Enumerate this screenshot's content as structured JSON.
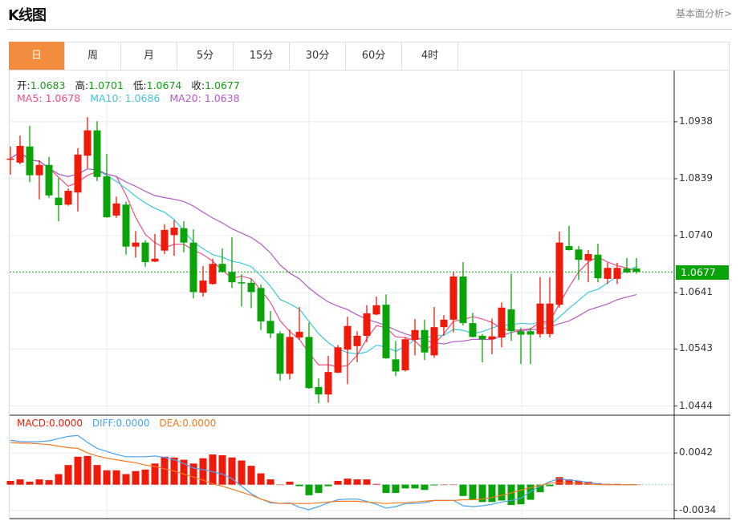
{
  "header": {
    "title": "K线图",
    "link": "基本面分析>"
  },
  "tabs": [
    {
      "label": "日",
      "active": true
    },
    {
      "label": "周"
    },
    {
      "label": "月"
    },
    {
      "label": "5分"
    },
    {
      "label": "15分"
    },
    {
      "label": "30分"
    },
    {
      "label": "60分"
    },
    {
      "label": "4时"
    }
  ],
  "ohlc_legend": {
    "open_label": "开:",
    "open": "1.0683",
    "high_label": "高:",
    "high": "1.0701",
    "low_label": "低:",
    "low": "1.0674",
    "close_label": "收:",
    "close": "1.0677"
  },
  "ma_legend": {
    "ma5": "MA5: 1.0678",
    "ma10": "MA10: 1.0686",
    "ma20": "MA20: 1.0638"
  },
  "macd_legend": {
    "macd": "MACD:0.0000",
    "diff": "DIFF:0.0000",
    "dea": "DEA:0.0000"
  },
  "current_price": "1.0677",
  "colors": {
    "up": "#f01a0a",
    "down": "#0aa40a",
    "ma5": "#f0507f",
    "ma10": "#3cc8e0",
    "ma20": "#b35cc8",
    "diff": "#4aa3f0",
    "dea": "#f57a1e",
    "accent": "#f28c3e"
  },
  "chart_data": [
    {
      "type": "candlestick",
      "ylim": [
        1.0428,
        1.1027
      ],
      "yticks": [
        "1.0938",
        "1.0839",
        "1.0740",
        "1.0641",
        "1.0543",
        "1.0444"
      ],
      "ohlc": [
        [
          1.0872,
          1.0895,
          1.0846,
          1.0874
        ],
        [
          1.0867,
          1.0914,
          1.0864,
          1.0896
        ],
        [
          1.0895,
          1.0931,
          1.0833,
          1.0845
        ],
        [
          1.0845,
          1.0871,
          1.0803,
          1.0863
        ],
        [
          1.0863,
          1.0877,
          1.0806,
          1.081
        ],
        [
          1.0806,
          1.084,
          1.0765,
          1.0793
        ],
        [
          1.0794,
          1.0822,
          1.0792,
          1.0818
        ],
        [
          1.0815,
          1.0892,
          1.0782,
          1.0881
        ],
        [
          1.0879,
          1.0946,
          1.0857,
          1.0923
        ],
        [
          1.0923,
          1.0939,
          1.0835,
          1.0842
        ],
        [
          1.0843,
          1.0882,
          1.0771,
          1.0772
        ],
        [
          1.0775,
          1.0808,
          1.0771,
          1.0796
        ],
        [
          1.0794,
          1.0799,
          1.0707,
          1.0721
        ],
        [
          1.0721,
          1.0748,
          1.0702,
          1.0728
        ],
        [
          1.0728,
          1.0732,
          1.0686,
          1.0694
        ],
        [
          1.0695,
          1.0743,
          1.0694,
          1.07
        ],
        [
          1.0714,
          1.076,
          1.0708,
          1.075
        ],
        [
          1.0741,
          1.0767,
          1.0705,
          1.0754
        ],
        [
          1.0753,
          1.0765,
          1.0711,
          1.0728
        ],
        [
          1.0728,
          1.0751,
          1.0631,
          1.0642
        ],
        [
          1.0641,
          1.0687,
          1.0634,
          1.0662
        ],
        [
          1.0656,
          1.07,
          1.0655,
          1.0691
        ],
        [
          1.0691,
          1.0718,
          1.0676,
          1.0677
        ],
        [
          1.0677,
          1.0737,
          1.0649,
          1.0659
        ],
        [
          1.0659,
          1.0673,
          1.0617,
          1.0658
        ],
        [
          1.0658,
          1.0665,
          1.0614,
          1.0642
        ],
        [
          1.0649,
          1.0655,
          1.0576,
          1.0591
        ],
        [
          1.0592,
          1.0609,
          1.0562,
          1.057
        ],
        [
          1.057,
          1.0574,
          1.0488,
          1.05
        ],
        [
          1.05,
          1.0577,
          1.049,
          1.0564
        ],
        [
          1.0563,
          1.0616,
          1.0559,
          1.0573
        ],
        [
          1.0564,
          1.0589,
          1.0474,
          1.0475
        ],
        [
          1.0477,
          1.0492,
          1.0449,
          1.0464
        ],
        [
          1.0464,
          1.0531,
          1.045,
          1.0503
        ],
        [
          1.0502,
          1.055,
          1.0501,
          1.0546
        ],
        [
          1.0542,
          1.0599,
          1.0482,
          1.0583
        ],
        [
          1.0548,
          1.0574,
          1.052,
          1.0566
        ],
        [
          1.0566,
          1.0619,
          1.0555,
          1.0605
        ],
        [
          1.0603,
          1.0634,
          1.0602,
          1.0619
        ],
        [
          1.062,
          1.0638,
          1.0526,
          1.0527
        ],
        [
          1.0525,
          1.0557,
          1.0496,
          1.0504
        ],
        [
          1.0506,
          1.0564,
          1.0504,
          1.056
        ],
        [
          1.0559,
          1.0595,
          1.0532,
          1.0576
        ],
        [
          1.0576,
          1.0594,
          1.0524,
          1.0537
        ],
        [
          1.0532,
          1.0616,
          1.0528,
          1.0581
        ],
        [
          1.0581,
          1.0602,
          1.0566,
          1.0594
        ],
        [
          1.0594,
          1.0677,
          1.0572,
          1.0669
        ],
        [
          1.0669,
          1.0694,
          1.0584,
          1.0588
        ],
        [
          1.0588,
          1.0606,
          1.0563,
          1.0564
        ],
        [
          1.0566,
          1.0569,
          1.052,
          1.056
        ],
        [
          1.056,
          1.0596,
          1.0534,
          1.0565
        ],
        [
          1.0563,
          1.0624,
          1.0546,
          1.0615
        ],
        [
          1.0612,
          1.0674,
          1.0557,
          1.0574
        ],
        [
          1.0574,
          1.058,
          1.0517,
          1.0568
        ],
        [
          1.0574,
          1.058,
          1.0517,
          1.0568
        ],
        [
          1.0569,
          1.0668,
          1.0563,
          1.0622
        ],
        [
          1.0569,
          1.0668,
          1.0563,
          1.0622
        ],
        [
          1.062,
          1.0747,
          1.0615,
          1.0728
        ],
        [
          1.0722,
          1.0757,
          1.0714,
          1.0715
        ],
        [
          1.0716,
          1.0722,
          1.0663,
          1.0698
        ],
        [
          1.0697,
          1.0715,
          1.0659,
          1.0708
        ],
        [
          1.0707,
          1.0726,
          1.0659,
          1.0666
        ],
        [
          1.0665,
          1.0693,
          1.0656,
          1.0684
        ],
        [
          1.0665,
          1.0693,
          1.0656,
          1.0684
        ],
        [
          1.0683,
          1.0701,
          1.0675,
          1.0676
        ],
        [
          1.0683,
          1.0701,
          1.0674,
          1.0677
        ]
      ],
      "ma_periods": [
        5,
        10,
        20
      ]
    },
    {
      "type": "bar+line",
      "ylim": [
        -0.0046,
        0.0092
      ],
      "yticks": [
        "0.0042",
        "-0.0034"
      ],
      "macd": [
        0.0005,
        0.0007,
        0.0004,
        0.0007,
        0.0006,
        0.0014,
        0.0026,
        0.0037,
        0.0038,
        0.0026,
        0.0019,
        0.0019,
        0.0014,
        0.0018,
        0.002,
        0.0028,
        0.0037,
        0.0036,
        0.0033,
        0.0028,
        0.0035,
        0.004,
        0.0039,
        0.0036,
        0.0032,
        0.0025,
        0.0015,
        0.0007,
        0.0,
        0.0004,
        -0.0002,
        -0.0014,
        -0.0011,
        -0.0002,
        0.0005,
        0.0008,
        0.0007,
        0.0007,
        0.0001,
        -0.0011,
        -0.0011,
        -0.0005,
        -0.0005,
        -0.0007,
        -0.0001,
        0.0,
        0.0,
        -0.0015,
        -0.002,
        -0.0023,
        -0.0023,
        -0.0021,
        -0.0027,
        -0.0026,
        -0.002,
        -0.001,
        -0.0002,
        0.001,
        0.0007,
        0.0005,
        0.0004,
        0.0002,
        0.0001,
        0.0001,
        0.0,
        0.0
      ],
      "diff": [
        0.0059,
        0.0057,
        0.0057,
        0.0057,
        0.0058,
        0.0061,
        0.0064,
        0.0065,
        0.0056,
        0.0048,
        0.0044,
        0.004,
        0.0037,
        0.0037,
        0.0037,
        0.0038,
        0.0036,
        0.0033,
        0.0028,
        0.0022,
        0.002,
        0.0017,
        0.0014,
        0.0008,
        -0.0002,
        -0.0012,
        -0.0019,
        -0.0024,
        -0.0025,
        -0.0024,
        -0.003,
        -0.0033,
        -0.0029,
        -0.0024,
        -0.002,
        -0.0019,
        -0.0019,
        -0.0022,
        -0.0026,
        -0.0031,
        -0.0029,
        -0.0025,
        -0.0025,
        -0.0024,
        -0.0021,
        -0.0021,
        -0.0021,
        -0.0028,
        -0.0029,
        -0.0028,
        -0.0026,
        -0.0023,
        -0.0021,
        -0.0018,
        -0.0009,
        -0.0002,
        0.0004,
        0.0008,
        0.0006,
        0.0005,
        0.0003,
        0.0001,
        0.0,
        0.0,
        0.0,
        0.0
      ],
      "dea": [
        0.0056,
        0.0055,
        0.0055,
        0.0054,
        0.0053,
        0.0051,
        0.0049,
        0.0048,
        0.0042,
        0.0038,
        0.0035,
        0.0033,
        0.0031,
        0.0029,
        0.0026,
        0.0024,
        0.0021,
        0.0018,
        0.0014,
        0.001,
        0.0006,
        0.0001,
        -0.0002,
        -0.0006,
        -0.001,
        -0.0014,
        -0.0019,
        -0.0023,
        -0.0025,
        -0.0025,
        -0.0025,
        -0.0025,
        -0.0024,
        -0.0023,
        -0.0022,
        -0.0022,
        -0.0022,
        -0.0023,
        -0.0024,
        -0.0025,
        -0.0024,
        -0.0024,
        -0.0023,
        -0.0022,
        -0.0021,
        -0.0021,
        -0.0021,
        -0.002,
        -0.002,
        -0.0019,
        -0.0017,
        -0.0014,
        -0.0011,
        -0.0007,
        -0.0004,
        -0.0001,
        0.0002,
        0.0003,
        0.0002,
        0.0002,
        0.0001,
        0.0,
        0.0,
        0.0,
        0.0,
        0.0
      ]
    }
  ]
}
